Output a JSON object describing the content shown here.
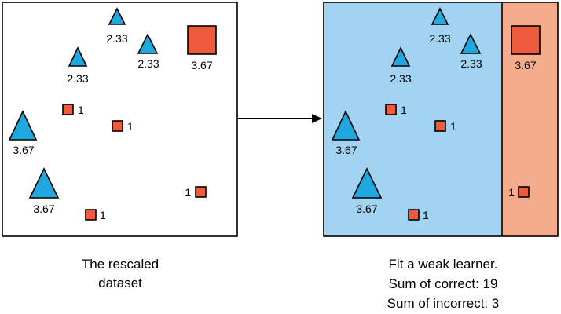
{
  "colors": {
    "triangle": "#1ea8dd",
    "square": "#ef5a3c",
    "region_correct": "#a3d3f2",
    "region_incorrect": "#f5ac8d",
    "border": "#000000"
  },
  "left_panel": {
    "caption_lines": [
      "The rescaled",
      "dataset"
    ],
    "points": [
      {
        "shape": "triangle",
        "weight": "2.33"
      },
      {
        "shape": "triangle",
        "weight": "2.33"
      },
      {
        "shape": "triangle",
        "weight": "2.33"
      },
      {
        "shape": "square",
        "weight": "3.67"
      },
      {
        "shape": "square",
        "weight": "1"
      },
      {
        "shape": "square",
        "weight": "1"
      },
      {
        "shape": "triangle",
        "weight": "3.67"
      },
      {
        "shape": "triangle",
        "weight": "3.67"
      },
      {
        "shape": "square",
        "weight": "1"
      },
      {
        "shape": "square",
        "weight": "1"
      }
    ]
  },
  "arrow": {
    "icon": "right-arrow-icon"
  },
  "right_panel": {
    "caption_lines": [
      "Fit a weak learner.",
      "Sum of correct: 19",
      "Sum of incorrect: 3"
    ],
    "points": [
      {
        "shape": "triangle",
        "weight": "2.33"
      },
      {
        "shape": "triangle",
        "weight": "2.33"
      },
      {
        "shape": "triangle",
        "weight": "2.33"
      },
      {
        "shape": "square",
        "weight": "3.67"
      },
      {
        "shape": "square",
        "weight": "1"
      },
      {
        "shape": "square",
        "weight": "1"
      },
      {
        "shape": "triangle",
        "weight": "3.67"
      },
      {
        "shape": "triangle",
        "weight": "3.67"
      },
      {
        "shape": "square",
        "weight": "1"
      },
      {
        "shape": "square",
        "weight": "1"
      }
    ]
  }
}
